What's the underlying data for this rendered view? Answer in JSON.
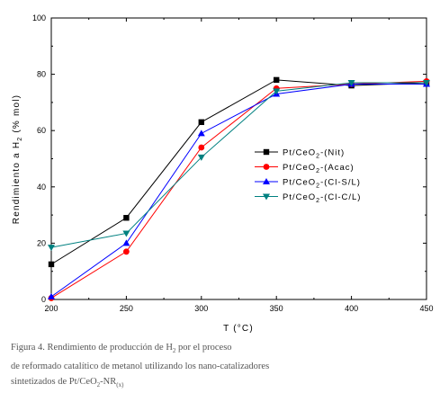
{
  "chart_data": {
    "type": "line",
    "xlabel": "T (°C)",
    "ylabel_main": "Rendimiento a H",
    "ylabel_sub": "2",
    "ylabel_tail": " (% mol)",
    "xlim": [
      200,
      450
    ],
    "ylim": [
      0,
      100
    ],
    "xticks": [
      200,
      250,
      300,
      350,
      400,
      450
    ],
    "yticks": [
      0,
      20,
      40,
      60,
      80,
      100
    ],
    "grid": false,
    "legend_position": "center-right",
    "x": [
      200,
      250,
      300,
      350,
      400,
      450
    ],
    "series": [
      {
        "name_main": "Pt/CeO",
        "name_sub": "2",
        "name_tail": "-(Nit)",
        "color": "#000000",
        "marker": "square",
        "values": [
          12.5,
          29,
          63,
          78,
          76,
          77
        ]
      },
      {
        "name_main": "Pt/CeO",
        "name_sub": "2",
        "name_tail": "-(Acac)",
        "color": "#ff0000",
        "marker": "circle",
        "values": [
          0.5,
          17,
          54,
          75,
          76.5,
          77.5
        ]
      },
      {
        "name_main": "Pt/CeO",
        "name_sub": "2",
        "name_tail": "-(Cl-S/L)",
        "color": "#0000ff",
        "marker": "triangle-up",
        "values": [
          1,
          20,
          59,
          73,
          76.5,
          76.5
        ]
      },
      {
        "name_main": "Pt/CeO",
        "name_sub": "2",
        "name_tail": "-(Cl-C/L)",
        "color": "#008080",
        "marker": "triangle-down",
        "values": [
          18.5,
          23.5,
          50.5,
          74,
          77,
          77
        ]
      }
    ]
  },
  "caption": {
    "line1_a": "Figura 4. Rendimiento de producción de H",
    "line1_sub": "2",
    "line1_b": " por el proceso",
    "line2": "de reformado catalítico de metanol utilizando los nano-catalizadores",
    "line3_a": "sintetizados de Pt/CeO",
    "line3_sub": "2",
    "line3_b": "-NR",
    "line3_paren": "(x)"
  }
}
